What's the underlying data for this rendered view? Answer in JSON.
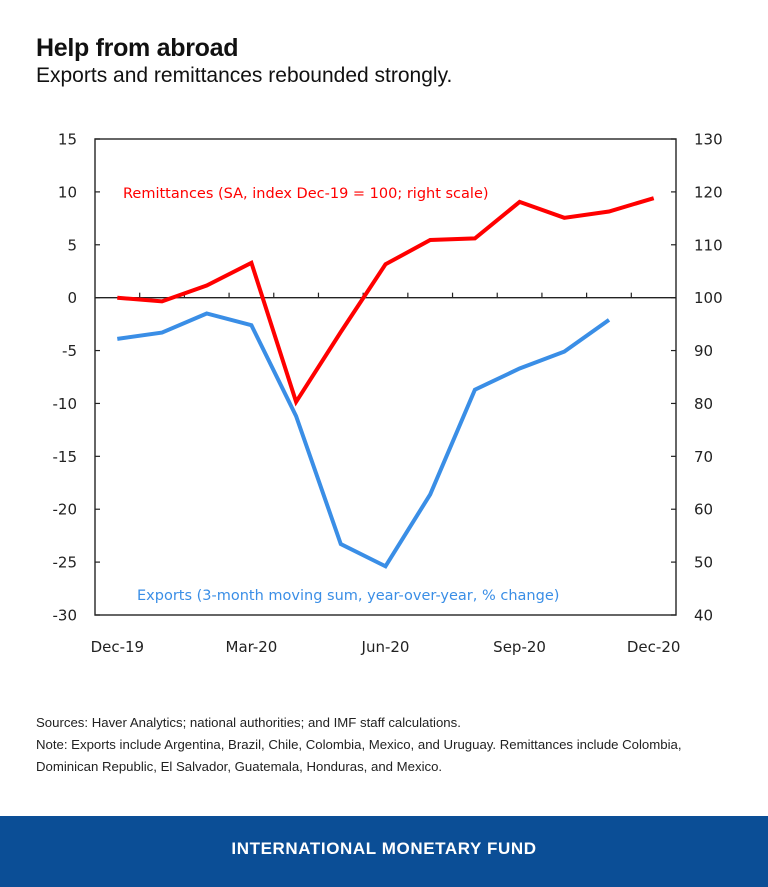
{
  "header": {
    "title": "Help from abroad",
    "subtitle": "Exports and remittances rebounded strongly."
  },
  "chart_data": {
    "type": "line",
    "title": "Help from abroad",
    "subtitle": "Exports and remittances rebounded strongly.",
    "x": [
      "Dec-19",
      "Jan-20",
      "Feb-20",
      "Mar-20",
      "Apr-20",
      "May-20",
      "Jun-20",
      "Jul-20",
      "Aug-20",
      "Sep-20",
      "Oct-20",
      "Nov-20",
      "Dec-20"
    ],
    "x_tick_labels": [
      "Dec-19",
      "Mar-20",
      "Jun-20",
      "Sep-20",
      "Dec-20"
    ],
    "left_axis": {
      "ylim": [
        -30,
        15
      ],
      "ticks": [
        15,
        10,
        5,
        0,
        -5,
        -10,
        -15,
        -20,
        -25,
        -30
      ]
    },
    "right_axis": {
      "ylim": [
        40,
        130
      ],
      "ticks": [
        130,
        120,
        110,
        100,
        90,
        80,
        70,
        60,
        50,
        40
      ]
    },
    "grid": false,
    "series": [
      {
        "name": "Remittances (SA, index Dec-19 = 100; right scale)",
        "axis": "right",
        "color": "#ff0000",
        "values": [
          100,
          99.3,
          102.3,
          106.6,
          80.3,
          93.5,
          106.3,
          110.9,
          111.2,
          118.1,
          115.1,
          116.3,
          118.8
        ]
      },
      {
        "name": "Exports (3-month moving sum, year-over-year, % change)",
        "axis": "left",
        "color": "#3a8ee6",
        "values": [
          -3.9,
          -3.3,
          -1.5,
          -2.6,
          -11.2,
          -23.3,
          -25.4,
          -18.6,
          -8.7,
          -6.7,
          -5.1,
          -2.1,
          null
        ]
      }
    ],
    "legend": "inline annotations"
  },
  "notes": {
    "sources": "Sources: Haver Analytics; national authorities; and IMF staff calculations.",
    "note_line1": "Note: Exports include Argentina, Brazil, Chile, Colombia, Mexico, and Uruguay. Remittances include Colombia,",
    "note_line2": "Dominican Republic, El Salvador, Guatemala, Honduras, and Mexico."
  },
  "footer": {
    "brand": "INTERNATIONAL MONETARY FUND",
    "color": "#0b4e96"
  }
}
